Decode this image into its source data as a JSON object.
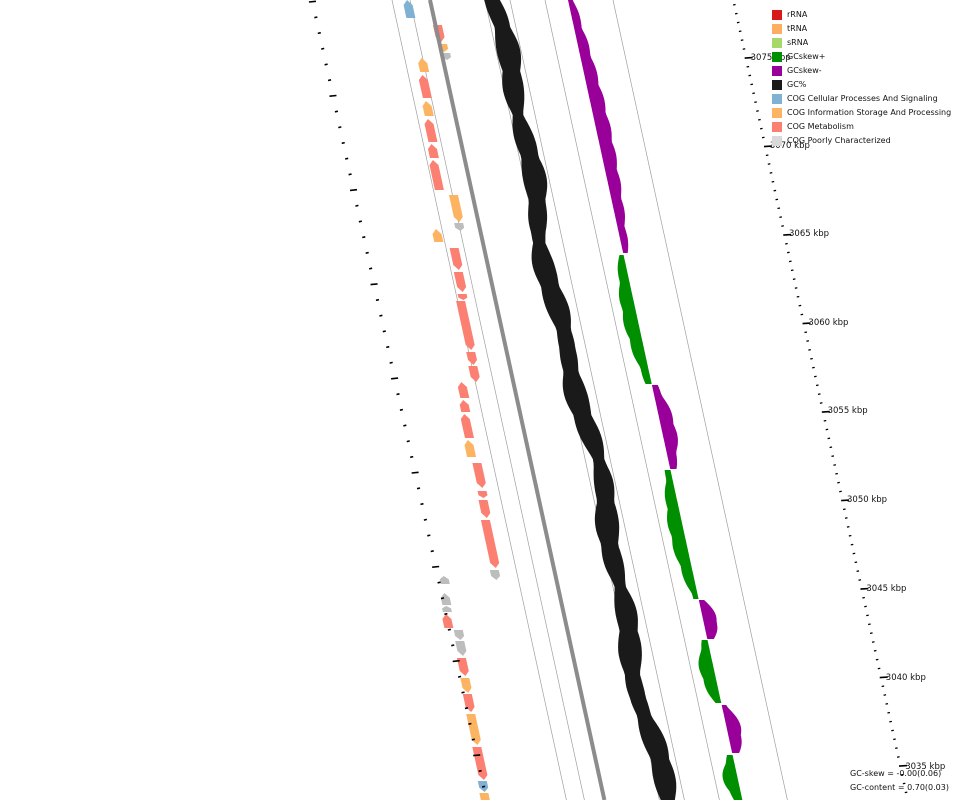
{
  "legend": {
    "items": [
      {
        "label": "rRNA",
        "color": "#d7191c"
      },
      {
        "label": "tRNA",
        "color": "#fdae61"
      },
      {
        "label": "sRNA",
        "color": "#a6d96a"
      },
      {
        "label": "GCskew+",
        "color": "#008f00"
      },
      {
        "label": "GCskew-",
        "color": "#990099"
      },
      {
        "label": "GC%",
        "color": "#1a1a1a"
      },
      {
        "label": "COG Cellular Processes And Signaling",
        "color": "#80b1d3"
      },
      {
        "label": "COG Information Storage And Processing",
        "color": "#fdb462"
      },
      {
        "label": "COG Metabolism",
        "color": "#fb8072"
      },
      {
        "label": "COG Poorly Characterized",
        "color": "#d9d9d9"
      }
    ]
  },
  "scale": {
    "unit": "kbp",
    "labels": [
      "3075 kbp",
      "3070 kbp",
      "3065 kbp",
      "3060 kbp",
      "3055 kbp",
      "3050 kbp",
      "3045 kbp",
      "3040 kbp",
      "3035 kbp"
    ]
  },
  "stats": {
    "gc_skew": "GC-skew = -0.00(0.06)",
    "gc_content": "GC-content = 0.70(0.03)"
  }
}
